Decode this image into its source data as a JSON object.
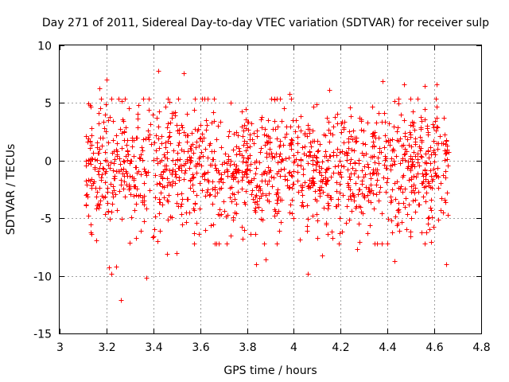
{
  "chart_data": {
    "type": "scatter",
    "title": "Day 271 of 2011, Sidereal Day-to-day VTEC variation (SDTVAR) for receiver sulp",
    "xlabel": "GPS time / hours",
    "ylabel": "SDTVAR / TECUs",
    "xlim": [
      3,
      4.8
    ],
    "ylim": [
      -15,
      10
    ],
    "x_ticks": [
      3,
      3.2,
      3.4,
      3.6,
      3.8,
      4,
      4.2,
      4.4,
      4.6,
      4.8
    ],
    "x_tick_labels": [
      "3",
      "3.2",
      "3.4",
      "3.6",
      "3.8",
      "4",
      "4.2",
      "4.4",
      "4.6",
      "4.8"
    ],
    "y_ticks": [
      -15,
      -10,
      -5,
      0,
      5,
      10
    ],
    "y_tick_labels": [
      "-15",
      "-10",
      "-5",
      "0",
      "5",
      "10"
    ],
    "grid": true,
    "marker": "+",
    "marker_color": "#ff0000",
    "data_range": {
      "x_min": 3.11,
      "x_max": 4.66
    },
    "generator_seed": 271,
    "point_count": 1400,
    "series_core": {
      "mean": -0.6,
      "std": 2.7
    },
    "outliers": [
      {
        "x": 3.42,
        "y": 7.8
      },
      {
        "x": 3.53,
        "y": 7.6
      },
      {
        "x": 3.2,
        "y": 7.0
      },
      {
        "x": 4.38,
        "y": 6.9
      },
      {
        "x": 3.17,
        "y": 6.3
      },
      {
        "x": 4.47,
        "y": 6.6
      },
      {
        "x": 4.56,
        "y": 6.5
      },
      {
        "x": 4.61,
        "y": 6.6
      },
      {
        "x": 4.15,
        "y": 6.1
      },
      {
        "x": 3.98,
        "y": 5.8
      },
      {
        "x": 3.24,
        "y": -9.2
      },
      {
        "x": 3.21,
        "y": -9.3
      },
      {
        "x": 3.22,
        "y": -9.8
      },
      {
        "x": 3.26,
        "y": -12.1
      },
      {
        "x": 3.37,
        "y": -10.2
      },
      {
        "x": 3.84,
        "y": -9.0
      },
      {
        "x": 4.06,
        "y": -9.8
      },
      {
        "x": 4.43,
        "y": -8.7
      },
      {
        "x": 4.65,
        "y": -9.0
      },
      {
        "x": 3.88,
        "y": -8.6
      },
      {
        "x": 3.46,
        "y": -8.1
      },
      {
        "x": 3.5,
        "y": -8.0
      },
      {
        "x": 4.12,
        "y": -8.2
      },
      {
        "x": 4.27,
        "y": -7.7
      },
      {
        "x": 3.3,
        "y": -7.1
      }
    ]
  }
}
